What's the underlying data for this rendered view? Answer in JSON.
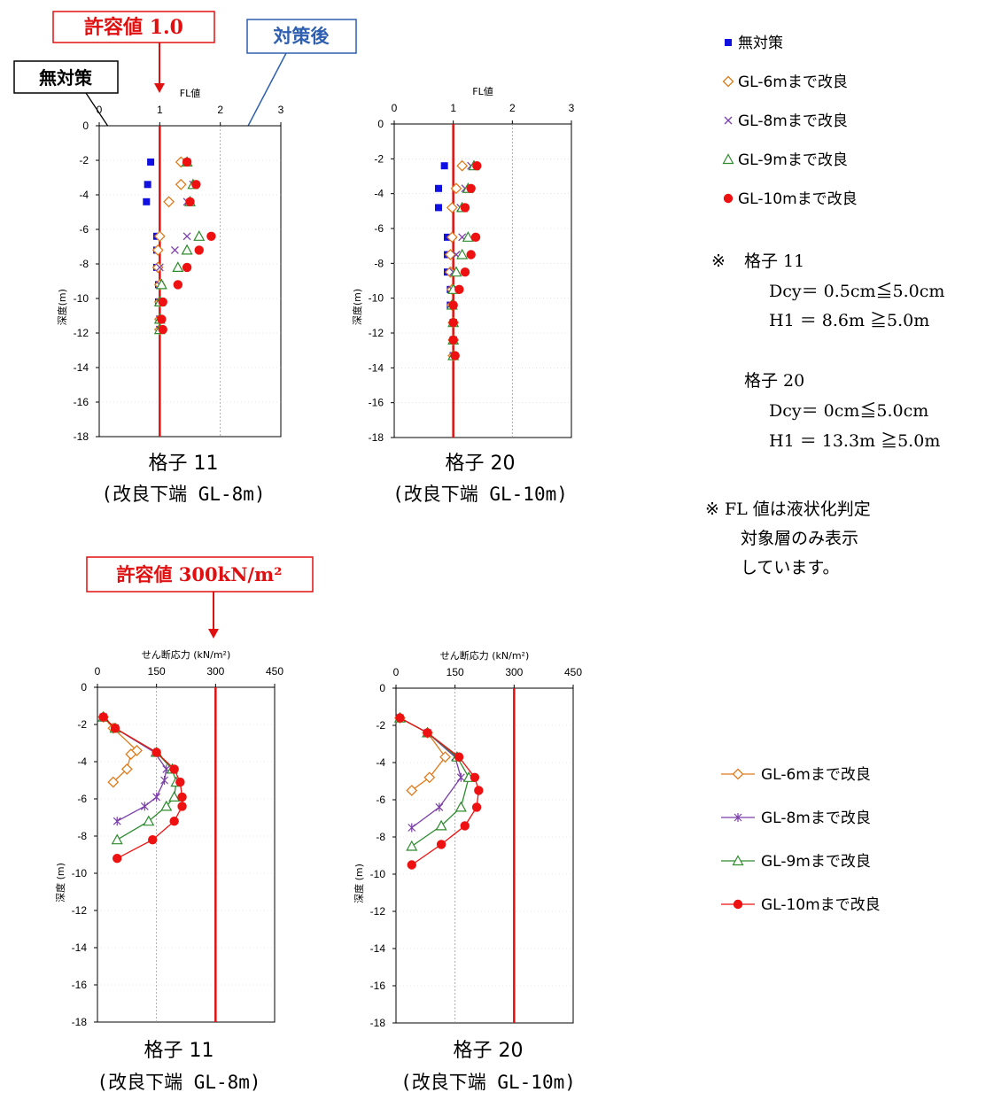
{
  "colors": {
    "none": "#1010e0",
    "gl6": "#e07a1a",
    "gl8": "#7b3fa8",
    "gl9": "#2e8b2e",
    "gl10": "#ee1111",
    "limit": "#e01010",
    "taisakugo": "#2e5fb0"
  },
  "callouts": {
    "fl_limit": "許容値 1.0",
    "taisakugo": "対策後",
    "mutaisaku": "無対策",
    "shear_limit": "許容値 300kN/m²"
  },
  "captions": {
    "fl11_line1": "格子 11",
    "fl11_line2": "(改良下端 GL-8m)",
    "fl20_line1": "格子 20",
    "fl20_line2": "(改良下端 GL-10m)",
    "sh11_line1": "格子 11",
    "sh11_line2": "(改良下端 GL-8m)",
    "sh20_line1": "格子 20",
    "sh20_line2": "(改良下端 GL-10m)"
  },
  "legend_top": [
    {
      "symbol": "■",
      "label": "無対策",
      "key": "none"
    },
    {
      "symbol": "◇",
      "label": "GL-6mまで改良",
      "key": "gl6"
    },
    {
      "symbol": "×",
      "label": "GL-8mまで改良",
      "key": "gl8"
    },
    {
      "symbol": "△",
      "label": "GL-9mまで改良",
      "key": "gl9"
    },
    {
      "symbol": "●",
      "label": "GL-10mまで改良",
      "key": "gl10"
    }
  ],
  "legend_bottom": [
    {
      "label": "GL-6mまで改良",
      "key": "gl6",
      "marker": "diamond"
    },
    {
      "label": "GL-8mまで改良",
      "key": "gl8",
      "marker": "star"
    },
    {
      "label": "GL-9mまで改良",
      "key": "gl9",
      "marker": "triangle"
    },
    {
      "label": "GL-10mまで改良",
      "key": "gl10",
      "marker": "circle"
    }
  ],
  "notes": {
    "n1_mark": "※",
    "n1_title": "格子 11",
    "n1_l1": "Dcy＝ 0.5cm≦5.0cm",
    "n1_l2": "H1 ＝ 8.6m ≧5.0m",
    "n1_title2": "格子 20",
    "n1_l3": "Dcy＝ 0cm≦5.0cm",
    "n1_l4": "H1 ＝ 13.3m ≧5.0m",
    "n2_l1": "※ FL 値は液状化判定",
    "n2_l2": "対象層のみ表示",
    "n2_l3": "しています。"
  },
  "chart_data": [
    {
      "type": "scatter",
      "title": "FL値",
      "ylabel": "深度(m)",
      "xlim": [
        0,
        3
      ],
      "ylim": [
        -18,
        0
      ],
      "xticks": [
        0,
        1,
        2,
        3
      ],
      "yticks": [
        0,
        -2,
        -4,
        -6,
        -8,
        -10,
        -12,
        -14,
        -16,
        -18
      ],
      "grid": "vertical",
      "limit_x": 1.0,
      "series": [
        {
          "name": "無対策",
          "key": "none",
          "marker": "square",
          "points": [
            [
              0.85,
              -2.1
            ],
            [
              0.8,
              -3.4
            ],
            [
              0.78,
              -4.4
            ],
            [
              0.95,
              -6.4
            ],
            [
              0.95,
              -7.2
            ],
            [
              0.95,
              -8.2
            ],
            [
              0.98,
              -9.2
            ],
            [
              0.98,
              -10.2
            ],
            [
              1.0,
              -11.2
            ],
            [
              1.0,
              -11.8
            ]
          ]
        },
        {
          "name": "GL-6mまで改良",
          "key": "gl6",
          "marker": "diamond",
          "points": [
            [
              1.35,
              -2.1
            ],
            [
              1.35,
              -3.4
            ],
            [
              1.15,
              -4.4
            ],
            [
              1.0,
              -6.4
            ],
            [
              0.97,
              -7.2
            ],
            [
              0.97,
              -8.2
            ],
            [
              1.0,
              -9.2
            ],
            [
              1.0,
              -10.2
            ],
            [
              1.0,
              -11.2
            ],
            [
              1.0,
              -11.8
            ]
          ]
        },
        {
          "name": "GL-8mまで改良",
          "key": "gl8",
          "marker": "cross",
          "points": [
            [
              1.45,
              -2.1
            ],
            [
              1.55,
              -3.4
            ],
            [
              1.45,
              -4.4
            ],
            [
              1.45,
              -6.4
            ],
            [
              1.25,
              -7.2
            ],
            [
              1.0,
              -8.2
            ],
            [
              1.0,
              -9.2
            ],
            [
              1.0,
              -10.2
            ],
            [
              1.0,
              -11.2
            ],
            [
              1.0,
              -11.8
            ]
          ]
        },
        {
          "name": "GL-9mまで改良",
          "key": "gl9",
          "marker": "triangle",
          "points": [
            [
              1.45,
              -2.1
            ],
            [
              1.55,
              -3.4
            ],
            [
              1.5,
              -4.4
            ],
            [
              1.65,
              -6.4
            ],
            [
              1.45,
              -7.2
            ],
            [
              1.3,
              -8.2
            ],
            [
              1.03,
              -9.2
            ],
            [
              1.0,
              -10.2
            ],
            [
              1.0,
              -11.2
            ],
            [
              1.0,
              -11.8
            ]
          ]
        },
        {
          "name": "GL-10mまで改良",
          "key": "gl10",
          "marker": "circle",
          "points": [
            [
              1.45,
              -2.1
            ],
            [
              1.6,
              -3.4
            ],
            [
              1.5,
              -4.4
            ],
            [
              1.85,
              -6.4
            ],
            [
              1.65,
              -7.2
            ],
            [
              1.45,
              -8.2
            ],
            [
              1.3,
              -9.2
            ],
            [
              1.05,
              -10.2
            ],
            [
              1.03,
              -11.2
            ],
            [
              1.05,
              -11.8
            ]
          ]
        }
      ]
    },
    {
      "type": "scatter",
      "title": "FL値",
      "ylabel": "深度(m)",
      "xlim": [
        0,
        3
      ],
      "ylim": [
        -18,
        0
      ],
      "xticks": [
        0,
        1,
        2,
        3
      ],
      "yticks": [
        0,
        -2,
        -4,
        -6,
        -8,
        -10,
        -12,
        -14,
        -16,
        -18
      ],
      "grid": "vertical",
      "limit_x": 1.0,
      "series": [
        {
          "name": "無対策",
          "key": "none",
          "marker": "square",
          "points": [
            [
              0.85,
              -2.4
            ],
            [
              0.75,
              -3.7
            ],
            [
              0.75,
              -4.8
            ],
            [
              0.9,
              -6.5
            ],
            [
              0.9,
              -7.5
            ],
            [
              0.9,
              -8.5
            ],
            [
              0.95,
              -9.5
            ],
            [
              0.95,
              -10.4
            ],
            [
              1.0,
              -11.4
            ],
            [
              1.0,
              -12.4
            ],
            [
              1.0,
              -13.3
            ]
          ]
        },
        {
          "name": "GL-6mまで改良",
          "key": "gl6",
          "marker": "diamond",
          "points": [
            [
              1.15,
              -2.4
            ],
            [
              1.05,
              -3.7
            ],
            [
              0.98,
              -4.8
            ],
            [
              0.98,
              -6.5
            ],
            [
              0.95,
              -7.5
            ],
            [
              0.95,
              -8.5
            ],
            [
              0.98,
              -9.5
            ],
            [
              0.98,
              -10.4
            ],
            [
              1.0,
              -11.4
            ],
            [
              1.0,
              -12.4
            ],
            [
              1.0,
              -13.3
            ]
          ]
        },
        {
          "name": "GL-8mまで改良",
          "key": "gl8",
          "marker": "cross",
          "points": [
            [
              1.3,
              -2.4
            ],
            [
              1.2,
              -3.7
            ],
            [
              1.12,
              -4.8
            ],
            [
              1.15,
              -6.5
            ],
            [
              1.05,
              -7.5
            ],
            [
              1.0,
              -8.5
            ],
            [
              0.98,
              -9.5
            ],
            [
              0.98,
              -10.4
            ],
            [
              1.0,
              -11.4
            ],
            [
              1.0,
              -12.4
            ],
            [
              1.0,
              -13.3
            ]
          ]
        },
        {
          "name": "GL-9mまで改良",
          "key": "gl9",
          "marker": "triangle",
          "points": [
            [
              1.35,
              -2.4
            ],
            [
              1.25,
              -3.7
            ],
            [
              1.15,
              -4.8
            ],
            [
              1.25,
              -6.5
            ],
            [
              1.15,
              -7.5
            ],
            [
              1.05,
              -8.5
            ],
            [
              1.0,
              -9.5
            ],
            [
              0.98,
              -10.4
            ],
            [
              1.0,
              -11.4
            ],
            [
              1.0,
              -12.4
            ],
            [
              1.0,
              -13.3
            ]
          ]
        },
        {
          "name": "GL-10mまで改良",
          "key": "gl10",
          "marker": "circle",
          "points": [
            [
              1.4,
              -2.4
            ],
            [
              1.3,
              -3.7
            ],
            [
              1.2,
              -4.8
            ],
            [
              1.38,
              -6.5
            ],
            [
              1.3,
              -7.5
            ],
            [
              1.2,
              -8.5
            ],
            [
              1.1,
              -9.5
            ],
            [
              1.0,
              -10.4
            ],
            [
              1.0,
              -11.4
            ],
            [
              1.0,
              -12.4
            ],
            [
              1.03,
              -13.3
            ]
          ]
        }
      ]
    },
    {
      "type": "line",
      "title": "せん断応力 (kN/m²)",
      "ylabel": "深度 (m)",
      "xlim": [
        0,
        450
      ],
      "ylim": [
        -18,
        0
      ],
      "xticks": [
        0,
        150,
        300,
        450
      ],
      "yticks": [
        0,
        -2,
        -4,
        -6,
        -8,
        -10,
        -12,
        -14,
        -16,
        -18
      ],
      "grid": "vertical",
      "limit_x": 300,
      "series": [
        {
          "name": "GL-6mまで改良",
          "key": "gl6",
          "marker": "diamond",
          "points": [
            [
              15,
              -1.6
            ],
            [
              40,
              -2.2
            ],
            [
              100,
              -3.4
            ],
            [
              85,
              -3.6
            ],
            [
              75,
              -4.4
            ],
            [
              40,
              -5.1
            ]
          ]
        },
        {
          "name": "GL-8mまで改良",
          "key": "gl8",
          "marker": "star",
          "points": [
            [
              15,
              -1.6
            ],
            [
              45,
              -2.2
            ],
            [
              145,
              -3.5
            ],
            [
              175,
              -4.4
            ],
            [
              170,
              -5.0
            ],
            [
              150,
              -5.9
            ],
            [
              120,
              -6.4
            ],
            [
              50,
              -7.2
            ]
          ]
        },
        {
          "name": "GL-9mまで改良",
          "key": "gl9",
          "marker": "triangle",
          "points": [
            [
              15,
              -1.6
            ],
            [
              45,
              -2.2
            ],
            [
              150,
              -3.5
            ],
            [
              190,
              -4.4
            ],
            [
              200,
              -5.1
            ],
            [
              195,
              -5.9
            ],
            [
              175,
              -6.4
            ],
            [
              130,
              -7.2
            ],
            [
              50,
              -8.2
            ]
          ]
        },
        {
          "name": "GL-10mまで改良",
          "key": "gl10",
          "marker": "circle",
          "points": [
            [
              15,
              -1.6
            ],
            [
              45,
              -2.2
            ],
            [
              150,
              -3.5
            ],
            [
              195,
              -4.4
            ],
            [
              210,
              -5.1
            ],
            [
              215,
              -5.9
            ],
            [
              215,
              -6.4
            ],
            [
              195,
              -7.2
            ],
            [
              140,
              -8.2
            ],
            [
              50,
              -9.2
            ]
          ]
        }
      ]
    },
    {
      "type": "line",
      "title": "せん断応力 (kN/m²)",
      "ylabel": "深度 (m)",
      "xlim": [
        0,
        450
      ],
      "ylim": [
        -18,
        0
      ],
      "xticks": [
        0,
        150,
        300,
        450
      ],
      "yticks": [
        0,
        -2,
        -4,
        -6,
        -8,
        -10,
        -12,
        -14,
        -16,
        -18
      ],
      "grid": "vertical",
      "limit_x": 300,
      "series": [
        {
          "name": "GL-6mまで改良",
          "key": "gl6",
          "marker": "diamond",
          "points": [
            [
              10,
              -1.6
            ],
            [
              80,
              -2.4
            ],
            [
              125,
              -3.7
            ],
            [
              85,
              -4.8
            ],
            [
              40,
              -5.5
            ]
          ]
        },
        {
          "name": "GL-8mまで改良",
          "key": "gl8",
          "marker": "star",
          "points": [
            [
              10,
              -1.6
            ],
            [
              80,
              -2.4
            ],
            [
              150,
              -3.7
            ],
            [
              165,
              -4.8
            ],
            [
              110,
              -6.4
            ],
            [
              40,
              -7.5
            ]
          ]
        },
        {
          "name": "GL-9mまで改良",
          "key": "gl9",
          "marker": "triangle",
          "points": [
            [
              10,
              -1.6
            ],
            [
              80,
              -2.4
            ],
            [
              155,
              -3.7
            ],
            [
              185,
              -4.8
            ],
            [
              165,
              -6.4
            ],
            [
              115,
              -7.4
            ],
            [
              40,
              -8.5
            ]
          ]
        },
        {
          "name": "GL-10mまで改良",
          "key": "gl10",
          "marker": "circle",
          "points": [
            [
              10,
              -1.6
            ],
            [
              80,
              -2.4
            ],
            [
              160,
              -3.7
            ],
            [
              200,
              -4.8
            ],
            [
              210,
              -5.5
            ],
            [
              205,
              -6.4
            ],
            [
              175,
              -7.4
            ],
            [
              115,
              -8.4
            ],
            [
              40,
              -9.5
            ]
          ]
        }
      ]
    }
  ]
}
